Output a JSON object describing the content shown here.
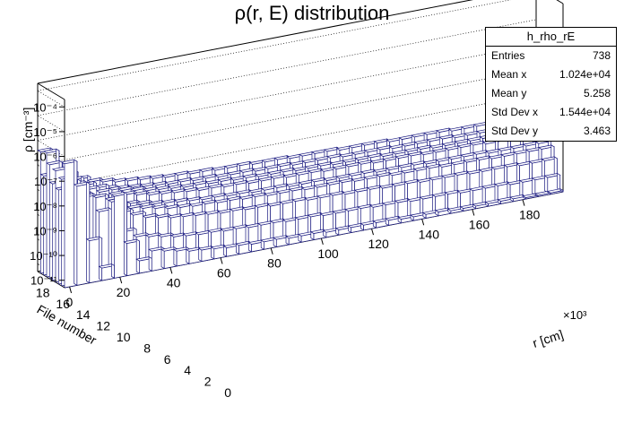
{
  "chart_data": {
    "type": "bar",
    "style": "3d-lego-histogram",
    "title": "ρ(r, E) distribution",
    "xlabel": "r [cm]",
    "xlabel_exponent": "×10³",
    "ylabel": "File number",
    "zlabel": "ρ [cm⁻³]",
    "x_ticks": [
      "0",
      "20",
      "40",
      "60",
      "80",
      "100",
      "120",
      "140",
      "160",
      "180"
    ],
    "y_ticks": [
      "0",
      "2",
      "4",
      "6",
      "8",
      "10",
      "12",
      "14",
      "16",
      "18"
    ],
    "z_ticks": [
      "10⁻¹¹",
      "10⁻¹⁰",
      "10⁻⁹",
      "10⁻⁸",
      "10⁻⁷",
      "10⁻⁶",
      "10⁻⁵",
      "10⁻⁴"
    ],
    "z_log_range": [
      -11.3,
      -3.7
    ],
    "series": [
      {
        "file": 0,
        "values": [
          -6.3,
          -7.3,
          -9.6,
          -10.8,
          -8.0,
          -10.0,
          -10.8,
          -10.5,
          -10.6,
          -10.7,
          -10.8,
          -10.85,
          -10.9,
          -10.95,
          -10.95,
          -11.0,
          -11.0,
          -11.0,
          -11.05,
          -11.05,
          -11.05,
          -11.1,
          -11.1,
          -11.1,
          -11.1,
          -11.1,
          -11.1,
          -11.15,
          -11.15,
          -11.15,
          -11.15,
          -11.2,
          -11.2,
          -11.2,
          -11.2,
          -11.2,
          -11.2,
          -11.25,
          -11.25,
          -11.25
        ]
      },
      {
        "file": 2,
        "values": [
          -7.0,
          -7.8,
          -9.8,
          -8.6,
          -8.3,
          -9.6,
          -9.9,
          -10.0,
          -10.1,
          -10.2,
          -10.25,
          -10.3,
          -10.3,
          -10.35,
          -10.35,
          -10.4,
          -10.4,
          -10.4,
          -10.45,
          -10.45,
          -10.45,
          -10.5,
          -10.5,
          -10.5,
          -10.5,
          -10.55,
          -10.55,
          -10.55,
          -10.6,
          -10.6,
          -10.6,
          -10.6,
          -10.65,
          -10.65,
          -10.65,
          -10.65,
          -10.7,
          -10.7,
          -10.7,
          -10.7
        ]
      },
      {
        "file": 4,
        "values": [
          -7.5,
          -7.6,
          -8.0,
          -8.1,
          -8.3,
          -8.9,
          -9.1,
          -9.3,
          -9.4,
          -9.5,
          -9.55,
          -9.6,
          -9.65,
          -9.7,
          -9.7,
          -9.75,
          -9.75,
          -9.8,
          -9.8,
          -9.8,
          -9.85,
          -9.85,
          -9.85,
          -9.9,
          -9.9,
          -9.9,
          -9.95,
          -9.95,
          -9.95,
          -10.0,
          -10.0,
          -10.0,
          -10.0,
          -10.05,
          -10.05,
          -10.05,
          -10.05,
          -10.1,
          -10.1,
          -10.1
        ]
      },
      {
        "file": 6,
        "values": [
          -6.8,
          -7.4,
          -8.0,
          -8.2,
          -8.4,
          -8.7,
          -8.9,
          -9.0,
          -9.1,
          -9.2,
          -9.25,
          -9.3,
          -9.3,
          -9.35,
          -9.35,
          -9.4,
          -9.4,
          -9.45,
          -9.45,
          -9.45,
          -9.5,
          -9.5,
          -9.5,
          -9.5,
          -9.55,
          -9.55,
          -9.55,
          -9.6,
          -9.6,
          -9.6,
          -9.6,
          -9.65,
          -9.65,
          -9.65,
          -9.65,
          -9.7,
          -9.7,
          -9.7,
          -9.7,
          -9.7
        ]
      },
      {
        "file": 8,
        "values": [
          -7.4,
          -8.0,
          -8.2,
          -8.3,
          -8.5,
          -8.7,
          -8.8,
          -8.9,
          -9.0,
          -9.05,
          -9.1,
          -9.15,
          -9.2,
          -9.2,
          -9.25,
          -9.25,
          -9.3,
          -9.3,
          -9.3,
          -9.35,
          -9.35,
          -9.35,
          -9.4,
          -9.4,
          -9.4,
          -9.4,
          -9.45,
          -9.45,
          -9.45,
          -9.45,
          -9.5,
          -9.5,
          -9.5,
          -9.5,
          -9.5,
          -9.55,
          -9.55,
          -9.55,
          -9.55,
          -9.55
        ]
      },
      {
        "file": 10,
        "values": [
          -6.7,
          -7.2,
          -7.7,
          -8.0,
          -8.2,
          -8.4,
          -8.5,
          -8.6,
          -8.7,
          -8.75,
          -8.8,
          -8.85,
          -8.9,
          -8.9,
          -8.95,
          -8.95,
          -9.0,
          -9.0,
          -9.0,
          -9.05,
          -9.05,
          -9.05,
          -9.1,
          -9.1,
          -9.1,
          -9.1,
          -9.15,
          -9.15,
          -9.15,
          -9.15,
          -9.2,
          -9.2,
          -9.2,
          -9.2,
          -9.2,
          -9.25,
          -9.25,
          -9.25,
          -9.25,
          -9.25
        ]
      },
      {
        "file": 12,
        "values": [
          -6.3,
          -7.1,
          -7.6,
          -7.9,
          -8.1,
          -8.3,
          -8.4,
          -8.5,
          -8.6,
          -8.65,
          -8.7,
          -8.75,
          -8.75,
          -8.8,
          -8.8,
          -8.85,
          -8.85,
          -8.9,
          -8.9,
          -8.9,
          -8.95,
          -8.95,
          -8.95,
          -9.0,
          -9.0,
          -9.0,
          -9.0,
          -9.05,
          -9.05,
          -9.05,
          -9.05,
          -9.1,
          -9.1,
          -9.1,
          -9.1,
          -9.1,
          -9.15,
          -9.15,
          -9.15,
          -9.15
        ]
      },
      {
        "file": 14,
        "values": [
          -7.3,
          -7.5,
          -7.8,
          -8.0,
          -8.2,
          -8.3,
          -8.4,
          -8.45,
          -8.5,
          -8.55,
          -8.6,
          -8.6,
          -8.65,
          -8.65,
          -8.7,
          -8.7,
          -8.7,
          -8.75,
          -8.75,
          -8.75,
          -8.8,
          -8.8,
          -8.8,
          -8.8,
          -8.85,
          -8.85,
          -8.85,
          -8.85,
          -8.9,
          -8.9,
          -8.9,
          -8.9,
          -8.9,
          -8.95,
          -8.95,
          -8.95,
          -8.95,
          -8.95,
          -9.0,
          -9.0
        ]
      },
      {
        "file": 16,
        "values": [
          -6.4,
          -7.1,
          -7.5,
          -7.8,
          -8.0,
          -8.1,
          -8.2,
          -8.25,
          -8.3,
          -8.35,
          -8.4,
          -8.4,
          -8.45,
          -8.45,
          -8.5,
          -8.5,
          -8.5,
          -8.55,
          -8.55,
          -8.55,
          -8.6,
          -8.6,
          -8.6,
          -8.6,
          -8.65,
          -8.65,
          -8.65,
          -8.65,
          -8.7,
          -8.7,
          -8.7,
          -8.7,
          -8.7,
          -8.75,
          -8.75,
          -8.75,
          -8.75,
          -8.75,
          -8.8,
          -8.8
        ]
      }
    ]
  },
  "stats": {
    "name": "h_rho_rE",
    "rows": [
      {
        "label": "Entries",
        "value": "738"
      },
      {
        "label": "Mean x",
        "value": "1.024e+04"
      },
      {
        "label": "Mean y",
        "value": "5.258"
      },
      {
        "label": "Std Dev x",
        "value": "1.544e+04"
      },
      {
        "label": "Std Dev y",
        "value": "3.463"
      }
    ]
  },
  "colors": {
    "bar_line": "#1a1a80",
    "frame": "#000000",
    "grid": "#000000"
  }
}
